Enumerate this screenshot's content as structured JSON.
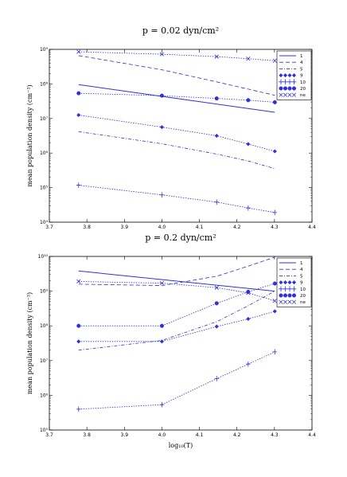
{
  "chart_data": [
    {
      "type": "line",
      "title": "p = 0.02 dyn/cm²",
      "xlabel": "",
      "ylabel": "mean population density (cm⁻³)",
      "xlim": [
        3.7,
        4.4
      ],
      "ylim_log10": [
        4,
        9
      ],
      "y_scale": "log",
      "xticks": [
        "3.7",
        "3.8",
        "3.9",
        "4.0",
        "4.1",
        "4.2",
        "4.3",
        "4.4"
      ],
      "yticks": [
        "10⁴",
        "10⁵",
        "10⁶",
        "10⁷",
        "10⁸",
        "10⁹"
      ],
      "legend_position": "top-right",
      "series": [
        {
          "name": "1",
          "x": [
            3.778,
            4.301
          ],
          "y_log10": [
            7.98,
            7.18
          ]
        },
        {
          "name": "4",
          "x": [
            3.778,
            4.0,
            4.146,
            4.23,
            4.301
          ],
          "y_log10": [
            8.82,
            8.41,
            8.06,
            7.85,
            7.67
          ]
        },
        {
          "name": "5",
          "x": [
            3.778,
            4.0,
            4.146,
            4.23,
            4.301
          ],
          "y_log10": [
            6.62,
            6.27,
            5.97,
            5.77,
            5.55
          ]
        },
        {
          "name": "9",
          "x": [
            3.778,
            4.0,
            4.146,
            4.23,
            4.301
          ],
          "y_log10": [
            7.1,
            6.75,
            6.5,
            6.26,
            6.05
          ]
        },
        {
          "name": "10",
          "x": [
            3.778,
            4.0,
            4.146,
            4.23,
            4.301
          ],
          "y_log10": [
            5.07,
            4.79,
            4.58,
            4.41,
            4.28
          ]
        },
        {
          "name": "20",
          "x": [
            3.778,
            4.0,
            4.146,
            4.23,
            4.301
          ],
          "y_log10": [
            7.73,
            7.66,
            7.58,
            7.53,
            7.47
          ]
        },
        {
          "name": "ne",
          "x": [
            3.778,
            4.0,
            4.146,
            4.23,
            4.301
          ],
          "y_log10": [
            8.93,
            8.86,
            8.79,
            8.73,
            8.67
          ]
        }
      ]
    },
    {
      "type": "line",
      "title": "p = 0.2 dyn/cm²",
      "xlabel": "log₁₀(T)",
      "ylabel": "mean population density (cm⁻³)",
      "xlim": [
        3.7,
        4.4
      ],
      "ylim_log10": [
        5,
        10
      ],
      "y_scale": "log",
      "xticks": [
        "3.7",
        "3.8",
        "3.9",
        "4.0",
        "4.1",
        "4.2",
        "4.3",
        "4.4"
      ],
      "yticks": [
        "10⁵",
        "10⁶",
        "10⁷",
        "10⁸",
        "10⁹",
        "10¹⁰"
      ],
      "legend_position": "top-right",
      "series": [
        {
          "name": "1",
          "x": [
            3.778,
            4.301
          ],
          "y_log10": [
            9.58,
            9.0
          ]
        },
        {
          "name": "4",
          "x": [
            3.778,
            4.0,
            4.146,
            4.23,
            4.301
          ],
          "y_log10": [
            9.2,
            9.16,
            9.43,
            9.72,
            9.98
          ]
        },
        {
          "name": "5",
          "x": [
            3.778,
            4.0,
            4.146,
            4.23,
            4.301
          ],
          "y_log10": [
            7.3,
            7.58,
            8.12,
            8.58,
            9.0
          ]
        },
        {
          "name": "9",
          "x": [
            3.778,
            4.0,
            4.146,
            4.23,
            4.301
          ],
          "y_log10": [
            7.55,
            7.55,
            7.98,
            8.2,
            8.42
          ]
        },
        {
          "name": "10",
          "x": [
            3.778,
            4.0,
            4.146,
            4.23,
            4.301
          ],
          "y_log10": [
            5.6,
            5.73,
            6.48,
            6.9,
            7.25
          ]
        },
        {
          "name": "20",
          "x": [
            3.778,
            4.0,
            4.146,
            4.23,
            4.301
          ],
          "y_log10": [
            8.0,
            8.0,
            8.65,
            8.98,
            9.22
          ]
        },
        {
          "name": "ne",
          "x": [
            3.778,
            4.0,
            4.146,
            4.23,
            4.301
          ],
          "y_log10": [
            9.28,
            9.23,
            9.1,
            8.95,
            8.72
          ]
        }
      ]
    }
  ],
  "style": {
    "series_color": "#3030e0",
    "dash_styles": {
      "1": "solid",
      "4": "dashed",
      "5": "dash-dot",
      "9": "dotted with diamond markers",
      "10": "dotted with plus markers",
      "20": "dotted with circle markers",
      "ne": "dotted with x markers"
    }
  }
}
